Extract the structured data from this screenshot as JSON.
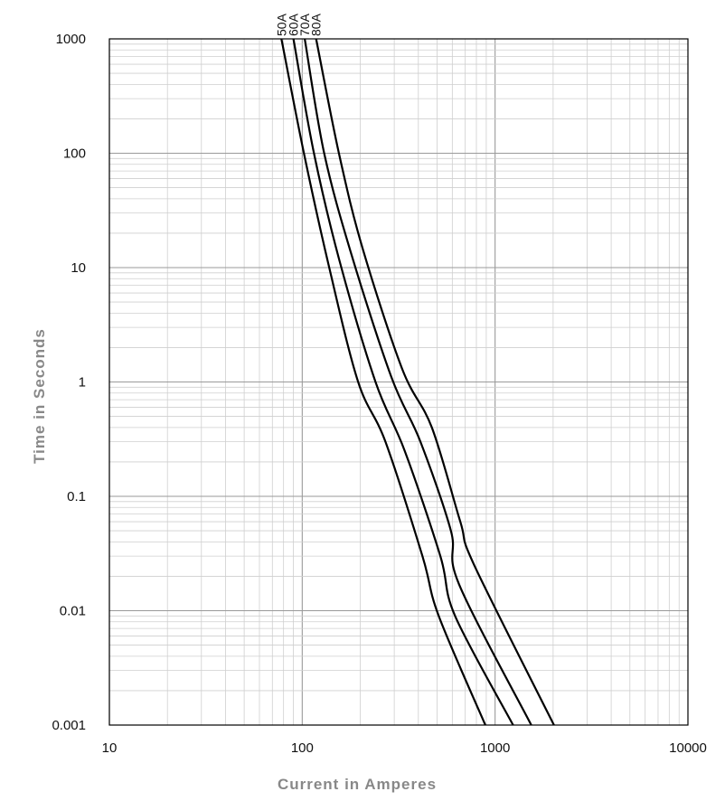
{
  "chart_data": {
    "type": "line",
    "title": "",
    "xlabel": "Current in Amperes",
    "ylabel": "Time in Seconds",
    "x_scale": "log",
    "y_scale": "log",
    "xlim": [
      10,
      10000
    ],
    "ylim": [
      0.001,
      1000
    ],
    "grid": true,
    "x_ticks": [
      "10",
      "100",
      "1000",
      "10000"
    ],
    "y_ticks": [
      "0.001",
      "0.01",
      "0.1",
      "1",
      "10",
      "100",
      "1000"
    ],
    "series_label_colors": "#111111",
    "series": [
      {
        "name": "50A",
        "points": [
          [
            78,
            1000
          ],
          [
            102,
            100
          ],
          [
            138,
            10
          ],
          [
            195,
            1
          ],
          [
            270,
            0.3
          ],
          [
            420,
            0.03
          ],
          [
            510,
            0.009
          ],
          [
            890,
            0.001
          ]
        ]
      },
      {
        "name": "60A",
        "points": [
          [
            90,
            1000
          ],
          [
            115,
            100
          ],
          [
            155,
            12
          ],
          [
            240,
            1
          ],
          [
            340,
            0.25
          ],
          [
            520,
            0.03
          ],
          [
            620,
            0.009
          ],
          [
            1240,
            0.001
          ]
        ]
      },
      {
        "name": "70A",
        "points": [
          [
            103,
            1000
          ],
          [
            130,
            100
          ],
          [
            180,
            13
          ],
          [
            290,
            1.1
          ],
          [
            410,
            0.3
          ],
          [
            590,
            0.05
          ],
          [
            650,
            0.017
          ],
          [
            1540,
            0.001
          ]
        ]
      },
      {
        "name": "80A",
        "points": [
          [
            118,
            1000
          ],
          [
            155,
            100
          ],
          [
            205,
            15
          ],
          [
            330,
            1.3
          ],
          [
            470,
            0.4
          ],
          [
            660,
            0.06
          ],
          [
            780,
            0.025
          ],
          [
            2020,
            0.001
          ]
        ]
      }
    ]
  }
}
